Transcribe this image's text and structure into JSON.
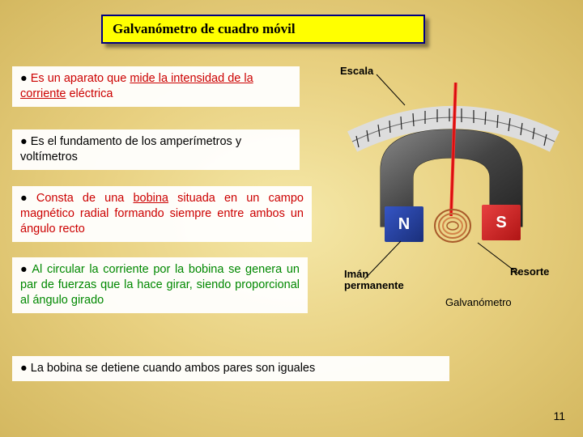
{
  "title": "Galvanómetro de cuadro móvil",
  "bullets": {
    "b1": {
      "pre": "Es un aparato que ",
      "mid": "mide la intensidad de la corriente",
      "post": " eléctrica"
    },
    "b2": "Es el fundamento de los amperímetros y voltímetros",
    "b3": {
      "pre": "Consta de una ",
      "key": "bobina",
      "post": " situada en un campo magnético radial formando siempre entre ambos un ángulo recto"
    },
    "b4": "Al circular la corriente por la bobina se genera un par de fuerzas que la hace girar, siendo proporcional al ángulo girado",
    "b5": "La bobina se detiene cuando ambos pares son iguales"
  },
  "labels": {
    "escala": "Escala",
    "iman": "Imán permanente",
    "resorte": "Resorte",
    "galv": "Galvanómetro",
    "n": "N",
    "s": "S"
  },
  "pageNumber": "11",
  "colors": {
    "title_bg": "#ffff00",
    "title_border": "#000080",
    "red": "#cc0000",
    "green": "#008800",
    "pole_n": "#1a2f7a",
    "pole_s": "#b01515"
  }
}
